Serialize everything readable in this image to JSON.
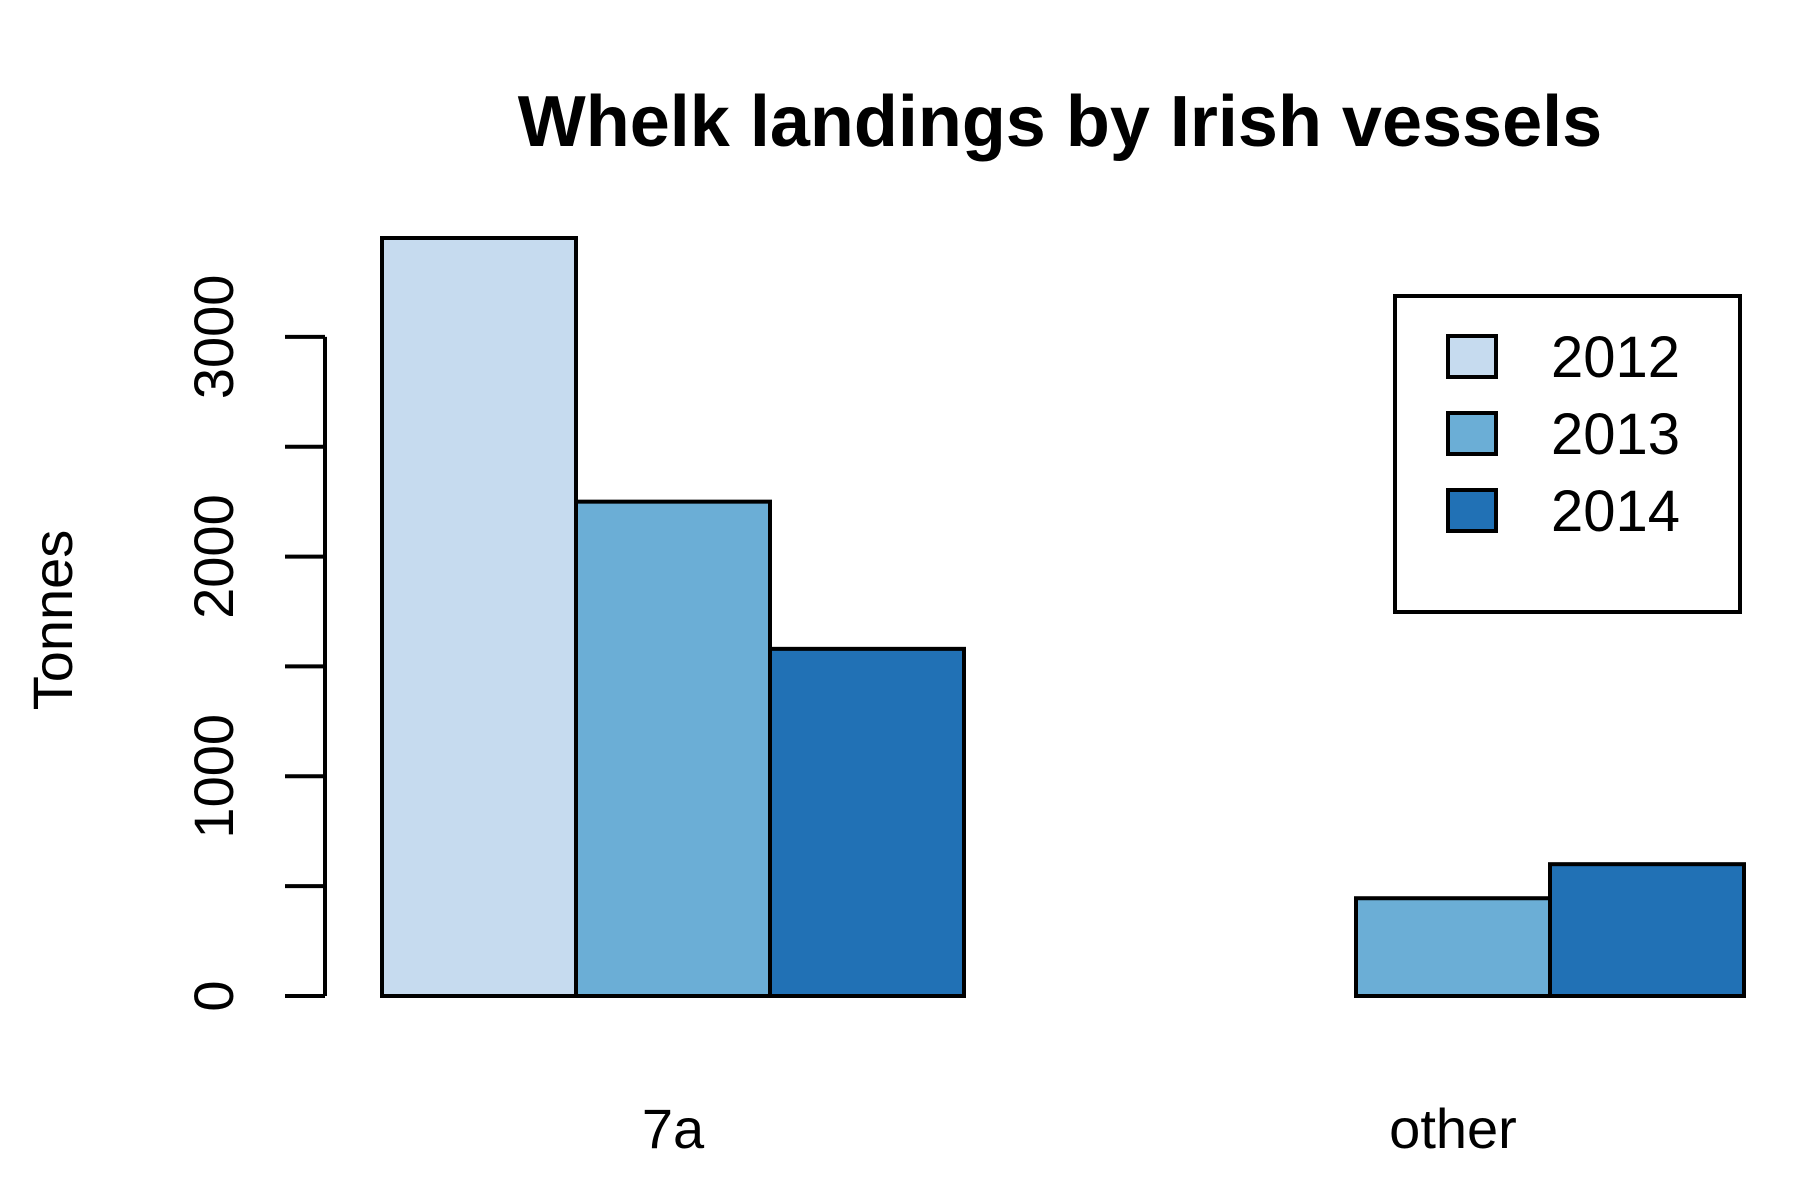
{
  "chart_data": {
    "type": "bar",
    "title": "Whelk landings by Irish vessels",
    "xlabel": "",
    "ylabel": "Tonnes",
    "categories": [
      "7a",
      "other"
    ],
    "series": [
      {
        "name": "2012",
        "values": [
          3450,
          0
        ],
        "color": "#c6dbef"
      },
      {
        "name": "2013",
        "values": [
          2250,
          445
        ],
        "color": "#6baed6"
      },
      {
        "name": "2014",
        "values": [
          1580,
          600
        ],
        "color": "#2171b5"
      }
    ],
    "yticks": [
      0,
      500,
      1000,
      1500,
      2000,
      2500,
      3000
    ],
    "ytick_labels": [
      "0",
      "",
      "1000",
      "",
      "2000",
      "",
      "3000"
    ],
    "ylim": [
      0,
      3450
    ],
    "grid": false,
    "legend_position": "top-right",
    "bar_mode": "grouped"
  }
}
